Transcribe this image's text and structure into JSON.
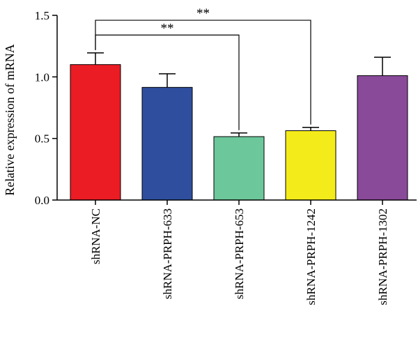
{
  "chart_data": {
    "type": "bar",
    "title": "",
    "xlabel": "",
    "ylabel": "Relative expression of mRNA",
    "ylim": [
      0,
      1.5
    ],
    "yticks": [
      "0.0",
      "0.5",
      "1.0",
      "1.5"
    ],
    "grid": false,
    "legend": "none",
    "categories": [
      "shRNA-NC",
      "shRNA-PRPH-633",
      "shRNA-PRPH-653",
      "shRNA-PRPH-1242",
      "shRNA-PRPH-1302"
    ],
    "values": [
      1.1,
      0.915,
      0.515,
      0.563,
      1.01
    ],
    "error_upper": [
      1.195,
      1.025,
      0.545,
      0.59,
      1.16
    ],
    "colors": [
      "#ec1c24",
      "#2f4f9e",
      "#6cc79a",
      "#f4ec1a",
      "#8a4a9a"
    ],
    "significance": [
      {
        "from": "shRNA-NC",
        "to": "shRNA-PRPH-653",
        "label": "**",
        "level": 1.34
      },
      {
        "from": "shRNA-NC",
        "to": "shRNA-PRPH-1242",
        "label": "**",
        "level": 1.46
      }
    ]
  }
}
